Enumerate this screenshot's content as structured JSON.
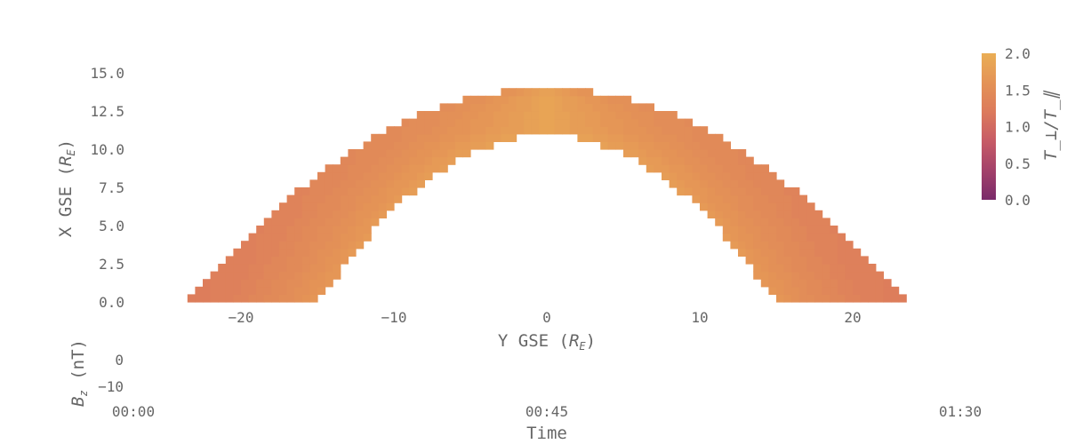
{
  "chart_data": [
    {
      "type": "heatmap",
      "title": "",
      "xlabel": "Y GSE (R_E)",
      "ylabel": "X GSE (R_E)",
      "xlabel_parts": [
        "Y GSE (",
        "R",
        "E",
        ")"
      ],
      "ylabel_parts": [
        "X GSE (",
        "R",
        "E",
        ")"
      ],
      "xlim": [
        -23,
        23.5
      ],
      "ylim": [
        -0.3,
        16
      ],
      "xticks": [
        -20,
        -10,
        0,
        10,
        20
      ],
      "xtick_labels": [
        "−20",
        "−10",
        "0",
        "10",
        "20"
      ],
      "yticks": [
        0,
        2.5,
        5,
        7.5,
        10,
        12.5,
        15
      ],
      "ytick_labels": [
        "0.0",
        "2.5",
        "5.0",
        "7.5",
        "10.0",
        "12.5",
        "15.0"
      ],
      "grid": false,
      "description_of_field": "Dome-shaped magnetosheath region between magnetopause and bow shock; colour = temperature anisotropy",
      "boundaries": {
        "inner": {
          "nose_x": 10.9,
          "flank_y_at_x0": 15.0
        },
        "outer": {
          "nose_x": 14.0,
          "flank_y_at_x0": 23.5
        }
      },
      "value_by_normalized_depth": {
        "depth": [
          0.0,
          0.15,
          0.35,
          0.55,
          0.75,
          1.0
        ],
        "value_nose": [
          1.85,
          1.8,
          1.75,
          1.7,
          1.65,
          1.6
        ],
        "value_flank": [
          1.55,
          1.45,
          1.35,
          1.3,
          1.25,
          1.25
        ]
      },
      "colorbar": {
        "label": "T_⊥/T_∥",
        "range": [
          0.0,
          2.0
        ],
        "ticks": [
          0.0,
          0.5,
          1.0,
          1.5,
          2.0
        ],
        "tick_labels": [
          "0.0",
          "0.5",
          "1.0",
          "1.5",
          "2.0"
        ],
        "colormap": [
          "#7a2a6a",
          "#a3416a",
          "#c75b66",
          "#dc7a5c",
          "#e49356",
          "#eaae55"
        ]
      }
    },
    {
      "type": "line",
      "title": "",
      "xlabel": "Time",
      "ylabel": "B_z (nT)",
      "ylabel_parts": [
        "B",
        "z",
        " (nT)"
      ],
      "xtick_labels": [
        "00:00",
        "00:45",
        "01:30"
      ],
      "yticks": [
        0,
        -10
      ],
      "ytick_labels": [
        "0",
        "−10"
      ],
      "series": []
    }
  ]
}
